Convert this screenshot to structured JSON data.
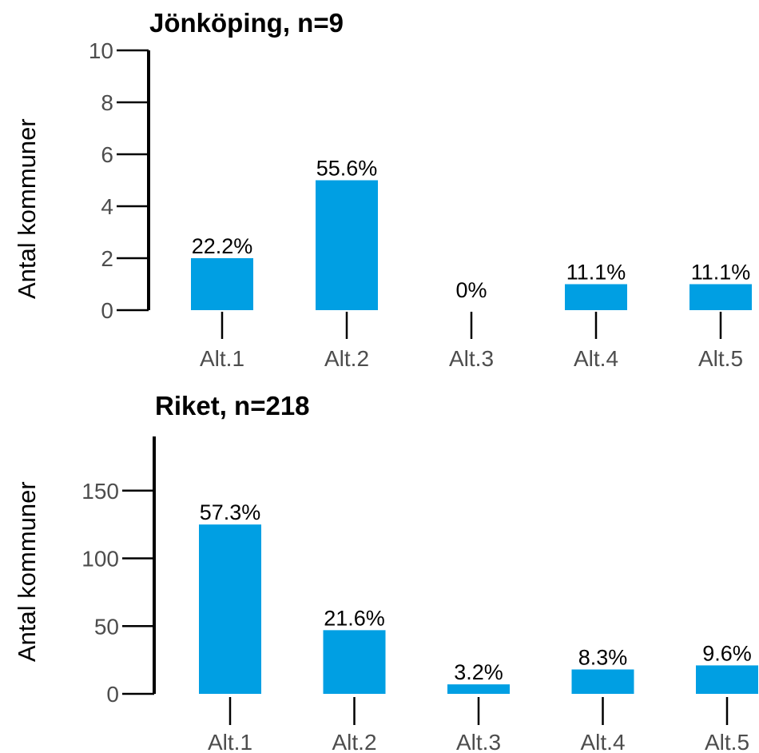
{
  "chart_data": [
    {
      "type": "bar",
      "title": "Jönköping, n=9",
      "ylabel": "Antal kommuner",
      "xlabel": "",
      "categories": [
        "Alt.1",
        "Alt.2",
        "Alt.3",
        "Alt.4",
        "Alt.5"
      ],
      "values": [
        2,
        5,
        0,
        1,
        1
      ],
      "labels": [
        "22.2%",
        "55.6%",
        "0%",
        "11.1%",
        "11.1%"
      ],
      "ylim": [
        0,
        10
      ],
      "yticks": [
        "0",
        "2",
        "4",
        "6",
        "8",
        "10"
      ],
      "grid": false
    },
    {
      "type": "bar",
      "title": "Riket, n=218",
      "ylabel": "Antal kommuner",
      "xlabel": "",
      "categories": [
        "Alt.1",
        "Alt.2",
        "Alt.3",
        "Alt.4",
        "Alt.5"
      ],
      "values": [
        125,
        47,
        7,
        18,
        21
      ],
      "labels": [
        "57.3%",
        "21.6%",
        "3.2%",
        "8.3%",
        "9.6%"
      ],
      "ylim": [
        0,
        190
      ],
      "yticks": [
        "0",
        "50",
        "100",
        "150"
      ],
      "grid": false
    }
  ],
  "colors": {
    "bar": "#009fe3",
    "axis": "#000000",
    "tick_text": "#4d4d4d"
  }
}
